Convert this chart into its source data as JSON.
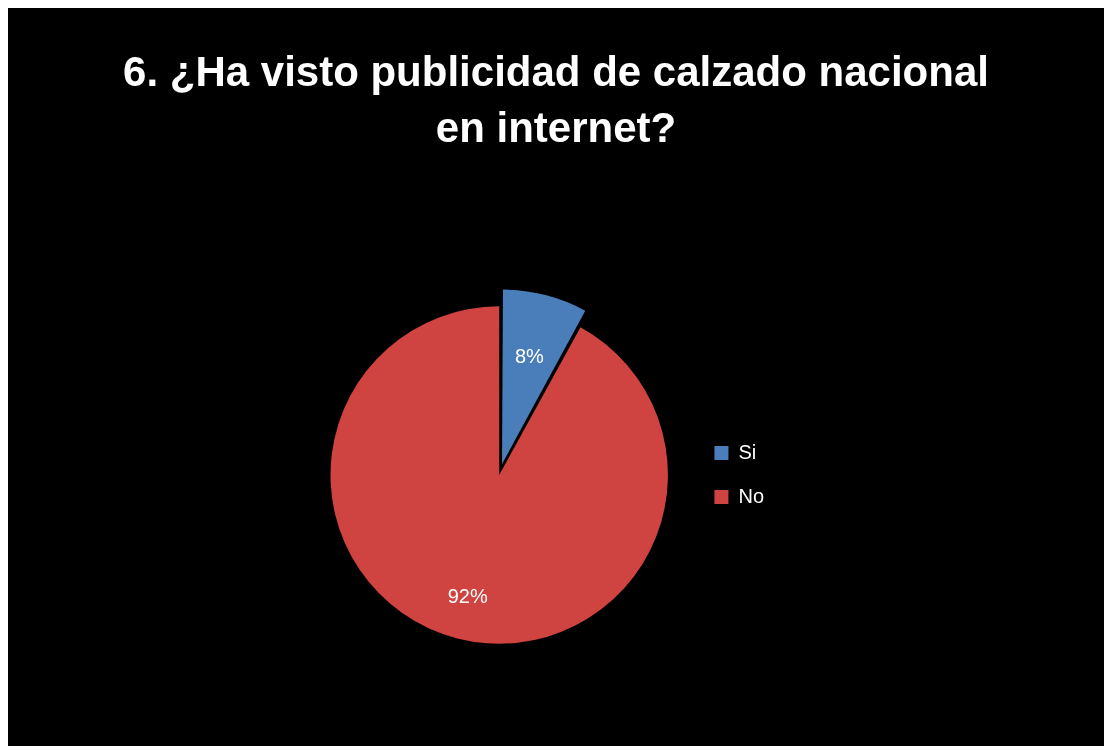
{
  "chart_data": {
    "type": "pie",
    "title": "6. ¿Ha visto publicidad de calzado nacional en internet?",
    "categories": [
      "Si",
      "No"
    ],
    "values": [
      8,
      92
    ],
    "colors": [
      "#4a7ebb",
      "#cf4340"
    ],
    "value_labels": [
      "8%",
      "92%"
    ],
    "legend": "right"
  }
}
